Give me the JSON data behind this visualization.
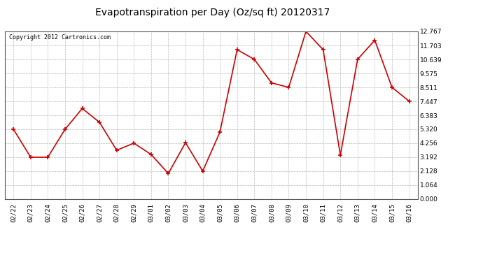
{
  "title": "Evapotranspiration per Day (Oz/sq ft) 20120317",
  "copyright": "Copyright 2012 Cartronics.com",
  "labels": [
    "02/22",
    "02/23",
    "02/24",
    "02/25",
    "02/26",
    "02/27",
    "02/28",
    "02/29",
    "03/01",
    "03/02",
    "03/03",
    "03/04",
    "03/05",
    "03/06",
    "03/07",
    "03/08",
    "03/09",
    "03/10",
    "03/11",
    "03/12",
    "03/13",
    "03/14",
    "03/15",
    "03/16"
  ],
  "values": [
    5.32,
    3.19,
    3.19,
    5.32,
    6.9,
    5.85,
    3.72,
    4.26,
    3.4,
    1.95,
    4.3,
    2.13,
    5.1,
    11.38,
    10.64,
    8.85,
    8.51,
    12.767,
    11.38,
    3.35,
    10.64,
    12.1,
    8.51,
    7.45
  ],
  "yticks": [
    0.0,
    1.064,
    2.128,
    3.192,
    4.256,
    5.32,
    6.383,
    7.447,
    8.511,
    9.575,
    10.639,
    11.703,
    12.767
  ],
  "line_color": "#cc0000",
  "marker_color": "#cc0000",
  "bg_color": "#ffffff",
  "plot_bg_color": "#ffffff",
  "grid_color": "#bbbbbb",
  "title_fontsize": 10,
  "copyright_fontsize": 6,
  "tick_fontsize": 6.5,
  "ylim": [
    0.0,
    12.767
  ]
}
